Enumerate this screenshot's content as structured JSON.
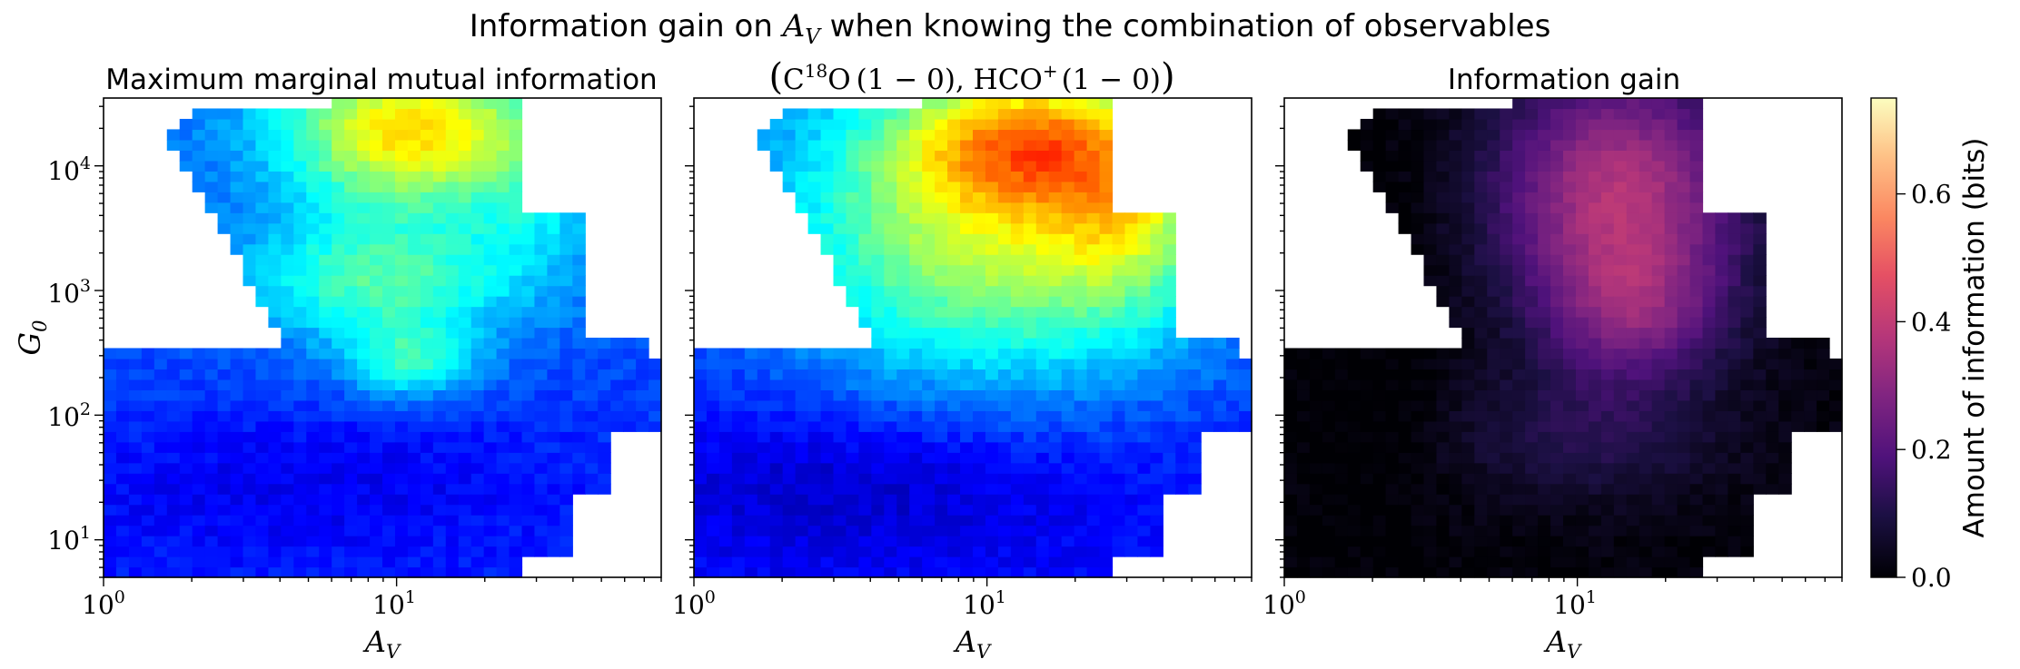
{
  "figure": {
    "suptitle_prefix": "Information gain on ",
    "suptitle_var": "A",
    "suptitle_sub": "V",
    "suptitle_suffix": " when knowing the combination of observables"
  },
  "chart_data": [
    {
      "type": "heatmap",
      "title": "Maximum marginal mutual information",
      "xlabel": "A_V",
      "ylabel": "G_0",
      "x_scale": "log",
      "y_scale": "log",
      "xlim": [
        1,
        80
      ],
      "ylim": [
        5,
        35000
      ],
      "x_ticks": [
        {
          "value": 1,
          "base": "10",
          "exp": "0"
        },
        {
          "value": 10,
          "base": "10",
          "exp": "1"
        }
      ],
      "y_ticks": [
        {
          "value": 10,
          "base": "10",
          "exp": "1"
        },
        {
          "value": 100,
          "base": "10",
          "exp": "2"
        },
        {
          "value": 1000,
          "base": "10",
          "exp": "3"
        },
        {
          "value": 10000,
          "base": "10",
          "exp": "4"
        }
      ],
      "colormap": "jet",
      "value_range": [
        0,
        0.75
      ]
    },
    {
      "type": "heatmap",
      "title": "(C18O (1 − 0), HCO+ (1 − 0))",
      "title_parts": {
        "open": "(",
        "c": "C",
        "iso": "18",
        "o": "O",
        "trans1": "(1 − 0), HCO",
        "plus": "+",
        "trans2": "(1 − 0)",
        "close": ")"
      },
      "xlabel": "A_V",
      "x_scale": "log",
      "y_scale": "log",
      "xlim": [
        1,
        80
      ],
      "ylim": [
        5,
        35000
      ],
      "colormap": "jet",
      "value_range": [
        0,
        0.75
      ]
    },
    {
      "type": "heatmap",
      "title": "Information gain",
      "xlabel": "A_V",
      "x_scale": "log",
      "y_scale": "log",
      "xlim": [
        1,
        80
      ],
      "ylim": [
        5,
        35000
      ],
      "colormap": "magma",
      "value_range": [
        0,
        0.75
      ]
    }
  ],
  "colorbar": {
    "label": "Amount of information (bits)",
    "range": [
      0,
      0.75
    ],
    "ticks": [
      "0.0",
      "0.2",
      "0.4",
      "0.6"
    ],
    "tick_values": [
      0.0,
      0.2,
      0.4,
      0.6
    ],
    "colormap": "magma"
  }
}
